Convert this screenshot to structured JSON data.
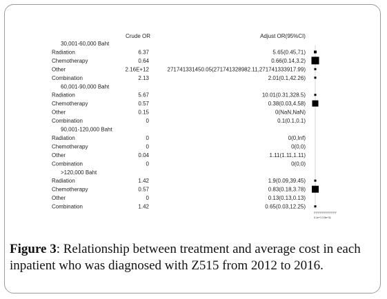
{
  "chart_data": {
    "type": "forest",
    "header": {
      "crude": "Crude OR",
      "adjust": "Adjust OR(95%CI)"
    },
    "groups": [
      {
        "label": "30,001-60,000 Baht",
        "rows": [
          {
            "label": "Radiation",
            "crude": "6.37",
            "adjust": "5.65(0.45,71)",
            "or": 5.65,
            "low": 0.45,
            "high": 71
          },
          {
            "label": "Chemotherapy",
            "crude": "0.64",
            "adjust": "0.66(0.14,3.2)",
            "or": 0.66,
            "low": 0.14,
            "high": 3.2
          },
          {
            "label": "Other",
            "crude": "2.16E+12",
            "adjust": "271741331450.05(271741328982.11,271741333917.99)",
            "or": 271741331450.05,
            "low": 271741328982.11,
            "high": 271741333917.99
          },
          {
            "label": "Combination",
            "crude": "2.13",
            "adjust": "2.01(0.1,42.26)",
            "or": 2.01,
            "low": 0.1,
            "high": 42.26
          }
        ]
      },
      {
        "label": "60,001-90,000 Baht",
        "rows": [
          {
            "label": "Radiation",
            "crude": "5.67",
            "adjust": "10.01(0.31,328.5)",
            "or": 10.01,
            "low": 0.31,
            "high": 328.5
          },
          {
            "label": "Chemotherapy",
            "crude": "0.57",
            "adjust": "0.38(0.03,4.58)",
            "or": 0.38,
            "low": 0.03,
            "high": 4.58
          },
          {
            "label": "Other",
            "crude": "0.15",
            "adjust": "0(NaN,NaN)",
            "or": 0,
            "low": null,
            "high": null
          },
          {
            "label": "Combination",
            "crude": "0",
            "adjust": "0.1(0.1,0.1)",
            "or": 0.1,
            "low": 0.1,
            "high": 0.1
          }
        ]
      },
      {
        "label": "90,001-120,000 Baht",
        "rows": [
          {
            "label": "Radiation",
            "crude": "0",
            "adjust": "0(0,Inf)",
            "or": 0,
            "low": 0,
            "high": null
          },
          {
            "label": "Chemotherapy",
            "crude": "0",
            "adjust": "0(0,0)",
            "or": 0,
            "low": 0,
            "high": 0
          },
          {
            "label": "Other",
            "crude": "0.04",
            "adjust": "1.11(1.11,1.11)",
            "or": 1.11,
            "low": 1.11,
            "high": 1.11
          },
          {
            "label": "Combination",
            "crude": "0",
            "adjust": "0(0,0)",
            "or": 0,
            "low": 0,
            "high": 0
          }
        ]
      },
      {
        "label": ">120,000 Baht",
        "rows": [
          {
            "label": "Radiation",
            "crude": "1.42",
            "adjust": "1.9(0.09,39.45)",
            "or": 1.9,
            "low": 0.09,
            "high": 39.45
          },
          {
            "label": "Chemotherapy",
            "crude": "0.57",
            "adjust": "0.83(0.18,3.78)",
            "or": 0.83,
            "low": 0.18,
            "high": 3.78
          },
          {
            "label": "Other",
            "crude": "0",
            "adjust": "0.13(0.13,0.13)",
            "or": 0.13,
            "low": 0.13,
            "high": 0.13
          },
          {
            "label": "Combination",
            "crude": "1.42",
            "adjust": "0.65(0.03,12.25)",
            "or": 0.65,
            "low": 0.03,
            "high": 12.25
          }
        ]
      }
    ],
    "axis": {
      "tick_label": "0.1e+1 2.5e+11"
    },
    "marker_sizes": [
      4,
      11,
      3,
      3,
      3,
      9,
      0,
      0,
      0,
      0,
      0,
      0,
      3,
      10,
      0,
      3
    ],
    "colors": {
      "marker": "#000000",
      "line": "#cccccc",
      "text": "#222222"
    }
  },
  "caption": {
    "figure_label": "Figure 3",
    "text": ": Relationship between treatment and average cost in each inpatient who was diagnosed with Z515 from 2012 to 2016."
  }
}
